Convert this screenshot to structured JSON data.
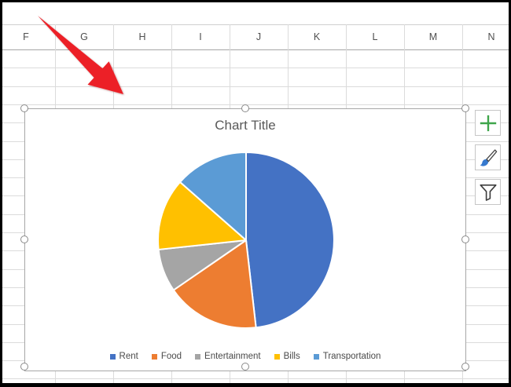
{
  "spreadsheet": {
    "column_headers": [
      "F",
      "G",
      "H",
      "I",
      "J",
      "K",
      "L",
      "M",
      "N"
    ]
  },
  "chart": {
    "title": "Chart Title",
    "selected": true,
    "side_buttons": [
      {
        "id": "chart-elements",
        "icon": "plus-icon"
      },
      {
        "id": "chart-styles",
        "icon": "brush-icon"
      },
      {
        "id": "chart-filters",
        "icon": "funnel-icon"
      }
    ]
  },
  "chart_data": {
    "type": "pie",
    "title": "Chart Title",
    "categories": [
      "Rent",
      "Food",
      "Entertainment",
      "Bills",
      "Transportation"
    ],
    "values": [
      48.2,
      17.2,
      7.9,
      13.2,
      13.5
    ],
    "values_unit": "percent (estimated from slice angles; no data labels shown)",
    "colors": [
      "#4472C4",
      "#ED7D31",
      "#A5A5A5",
      "#FFC000",
      "#5B9BD5"
    ],
    "start_angle_deg": 0,
    "direction": "clockwise",
    "legend_position": "bottom",
    "slice_gap_color": "#FFFFFF"
  },
  "annotation": {
    "type": "arrow",
    "color": "#EC2027",
    "direction": "pointing down-right at the chart"
  },
  "ui_colors": {
    "plus_green": "#3EA54A",
    "brush_blue": "#3679CE",
    "icon_outline": "#454545",
    "text_gray": "#595959",
    "grid_line": "#DBDBDB",
    "selection_frame": "#A7A7A7"
  }
}
